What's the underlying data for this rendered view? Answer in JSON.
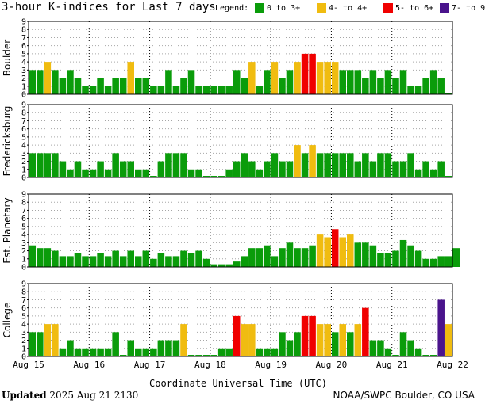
{
  "header": {
    "title": "3-hour K-indices for Last 7 days",
    "legend_label": "Legend:"
  },
  "legend": [
    {
      "label": "0 to 3+",
      "color": "#0a9c0a"
    },
    {
      "label": "4- to 4+",
      "color": "#f0bc10"
    },
    {
      "label": "5- to 6+",
      "color": "#f00000"
    },
    {
      "label": "7- to 9",
      "color": "#4a148c"
    }
  ],
  "footer": {
    "updated_word": "Updated",
    "updated_time": "2025 Aug 21 2130",
    "credit": "NOAA/SWPC Boulder, CO USA"
  },
  "chart_data": {
    "type": "bar",
    "xlabel": "Coordinate Universal Time (UTC)",
    "x_tick_labels": [
      "Aug 15",
      "Aug 16",
      "Aug 17",
      "Aug 18",
      "Aug 19",
      "Aug 20",
      "Aug 21",
      "Aug 22"
    ],
    "ylim": [
      0,
      9
    ],
    "y_ticks": [
      0,
      1,
      2,
      3,
      4,
      5,
      6,
      7,
      8,
      9
    ],
    "grid": "dotted",
    "interval_hours": 3,
    "panels": [
      {
        "ylabel": "Boulder",
        "values": [
          3,
          3,
          4,
          3,
          2,
          3,
          2,
          1,
          1,
          2,
          1,
          2,
          2,
          4,
          2,
          2,
          1,
          1,
          3,
          1,
          2,
          3,
          1,
          1,
          1,
          1,
          1,
          3,
          2,
          4,
          1,
          3,
          4,
          2,
          3,
          4,
          5,
          5,
          4,
          4,
          4,
          3,
          3,
          3,
          2,
          3,
          2,
          3,
          2,
          3,
          1,
          1,
          2,
          3,
          2,
          0
        ]
      },
      {
        "ylabel": "Fredericksburg",
        "values": [
          3,
          3,
          3,
          3,
          2,
          1,
          2,
          1,
          1,
          2,
          1,
          3,
          2,
          2,
          1,
          1,
          0,
          2,
          3,
          3,
          3,
          1,
          1,
          0,
          0,
          0,
          1,
          2,
          3,
          2,
          1,
          2,
          3,
          2,
          2,
          4,
          3,
          4,
          3,
          3,
          3,
          3,
          3,
          2,
          3,
          2,
          3,
          3,
          2,
          2,
          3,
          1,
          2,
          1,
          2,
          0
        ]
      },
      {
        "ylabel": "Est. Planetary",
        "values": [
          2.67,
          2.33,
          2.33,
          2.0,
          1.33,
          1.33,
          1.67,
          1.33,
          1.33,
          1.67,
          1.33,
          2.0,
          1.33,
          2.0,
          1.33,
          2.0,
          1.0,
          1.67,
          1.33,
          1.33,
          2.0,
          1.67,
          2.0,
          1.0,
          0.33,
          0.33,
          0.33,
          0.67,
          1.33,
          2.33,
          2.33,
          2.67,
          1.33,
          2.33,
          3.0,
          2.33,
          2.33,
          2.67,
          4.0,
          3.67,
          4.67,
          3.67,
          4.0,
          3.0,
          3.0,
          2.67,
          1.67,
          1.67,
          2.0,
          3.33,
          2.67,
          2.0,
          1.0,
          1.0,
          1.33,
          1.33,
          2.33
        ]
      },
      {
        "ylabel": "College",
        "values": [
          3,
          3,
          4,
          4,
          1,
          2,
          1,
          1,
          1,
          1,
          1,
          3,
          0,
          2,
          1,
          1,
          1,
          2,
          2,
          2,
          4,
          0,
          0,
          0,
          0,
          1,
          1,
          5,
          4,
          4,
          1,
          1,
          1,
          3,
          2,
          3,
          5,
          5,
          4,
          4,
          3,
          4,
          3,
          4,
          6,
          2,
          2,
          1,
          0,
          3,
          2,
          1,
          0,
          0,
          7,
          4
        ]
      }
    ]
  }
}
